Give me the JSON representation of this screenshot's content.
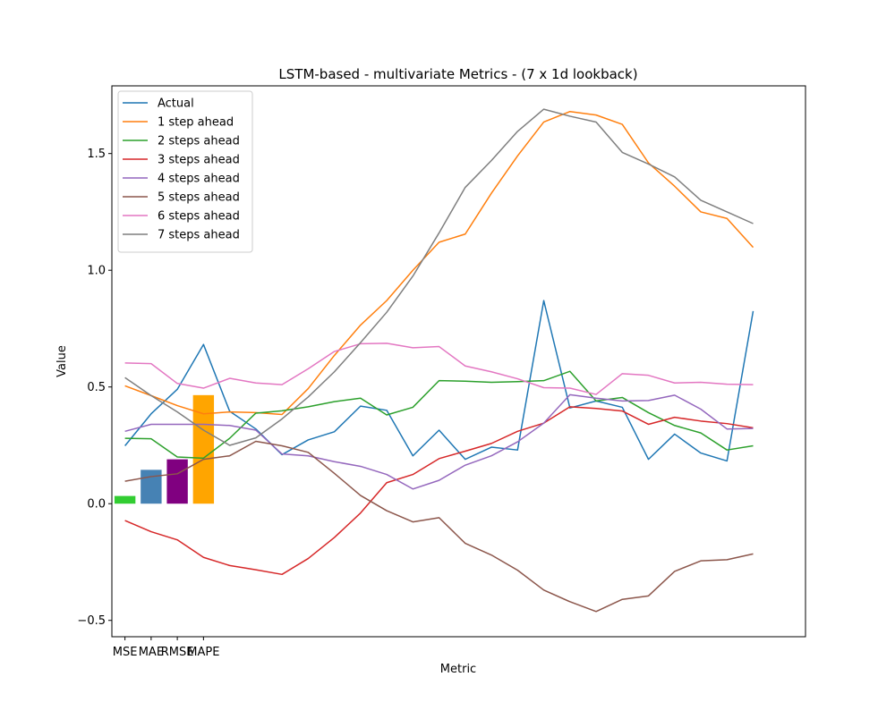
{
  "chart_data": {
    "type": "line",
    "title": "LSTM-based - multivariate Metrics - (7 x 1d lookback)",
    "xlabel": "Metric",
    "ylabel": "Value",
    "ylim": [
      -0.57,
      1.79
    ],
    "yticks": [
      -0.5,
      0.0,
      0.5,
      1.0,
      1.5
    ],
    "ytick_labels": [
      "−0.5",
      "0.0",
      "0.5",
      "1.0",
      "1.5"
    ],
    "xlim": [
      -0.5,
      26.0
    ],
    "grid": false,
    "legend_position": "top-left",
    "bars": {
      "categories": [
        "MSE",
        "MAE",
        "RMSE",
        "MAPE"
      ],
      "values": [
        0.033,
        0.145,
        0.19,
        0.465
      ],
      "colors": [
        "#32cd32",
        "#4682b4",
        "#800080",
        "#ffa500"
      ]
    },
    "series": [
      {
        "name": "Actual",
        "color": "#1f77b4",
        "values": [
          0.248,
          0.385,
          0.49,
          0.682,
          0.396,
          0.32,
          0.21,
          0.273,
          0.308,
          0.418,
          0.4,
          0.205,
          0.315,
          0.19,
          0.242,
          0.23,
          0.87,
          0.41,
          0.44,
          0.413,
          0.19,
          0.298,
          0.217,
          0.183,
          0.825
        ]
      },
      {
        "name": "1 step ahead",
        "color": "#ff7f0e",
        "values": [
          0.505,
          0.463,
          0.42,
          0.385,
          0.393,
          0.39,
          0.382,
          0.493,
          0.635,
          0.765,
          0.87,
          1.0,
          1.12,
          1.155,
          1.33,
          1.49,
          1.635,
          1.68,
          1.665,
          1.625,
          1.46,
          1.36,
          1.25,
          1.222,
          1.098
        ]
      },
      {
        "name": "2 steps ahead",
        "color": "#2ca02c",
        "values": [
          0.28,
          0.278,
          0.2,
          0.195,
          0.28,
          0.388,
          0.398,
          0.415,
          0.437,
          0.452,
          0.38,
          0.413,
          0.527,
          0.525,
          0.52,
          0.523,
          0.527,
          0.567,
          0.44,
          0.455,
          0.39,
          0.335,
          0.303,
          0.23,
          0.248
        ]
      },
      {
        "name": "3 steps ahead",
        "color": "#d62728",
        "values": [
          -0.072,
          -0.12,
          -0.155,
          -0.23,
          -0.265,
          -0.283,
          -0.303,
          -0.235,
          -0.145,
          -0.04,
          0.09,
          0.125,
          0.193,
          0.225,
          0.258,
          0.31,
          0.345,
          0.415,
          0.408,
          0.397,
          0.34,
          0.37,
          0.354,
          0.343,
          0.325
        ]
      },
      {
        "name": "4 steps ahead",
        "color": "#9467bd",
        "values": [
          0.31,
          0.34,
          0.34,
          0.34,
          0.335,
          0.315,
          0.213,
          0.205,
          0.18,
          0.16,
          0.125,
          0.063,
          0.1,
          0.165,
          0.205,
          0.265,
          0.345,
          0.467,
          0.452,
          0.44,
          0.442,
          0.465,
          0.405,
          0.32,
          0.322
        ]
      },
      {
        "name": "5 steps ahead",
        "color": "#8c564b",
        "values": [
          0.096,
          0.116,
          0.128,
          0.19,
          0.205,
          0.267,
          0.248,
          0.22,
          0.13,
          0.035,
          -0.03,
          -0.078,
          -0.06,
          -0.17,
          -0.22,
          -0.285,
          -0.37,
          -0.42,
          -0.462,
          -0.41,
          -0.395,
          -0.29,
          -0.245,
          -0.24,
          -0.215
        ]
      },
      {
        "name": "6 steps ahead",
        "color": "#e377c2",
        "values": [
          0.603,
          0.6,
          0.515,
          0.495,
          0.537,
          0.517,
          0.51,
          0.578,
          0.652,
          0.685,
          0.687,
          0.668,
          0.673,
          0.59,
          0.565,
          0.535,
          0.497,
          0.495,
          0.468,
          0.557,
          0.55,
          0.517,
          0.52,
          0.512,
          0.51
        ]
      },
      {
        "name": "7 steps ahead",
        "color": "#7f7f7f",
        "values": [
          0.54,
          0.463,
          0.393,
          0.315,
          0.25,
          0.282,
          0.363,
          0.457,
          0.565,
          0.69,
          0.82,
          0.975,
          1.16,
          1.355,
          1.47,
          1.595,
          1.69,
          1.66,
          1.635,
          1.505,
          1.455,
          1.4,
          1.3,
          1.25,
          1.2
        ]
      }
    ]
  }
}
